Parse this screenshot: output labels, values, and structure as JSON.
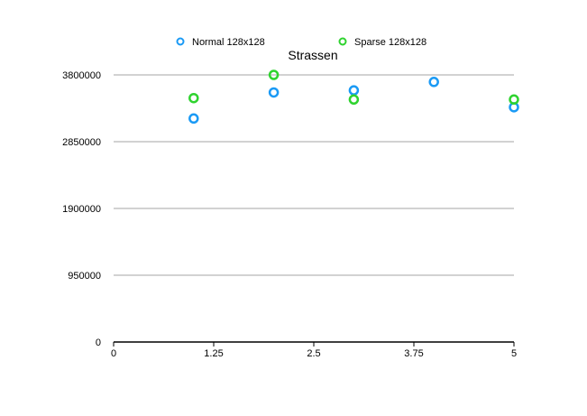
{
  "chart_data": {
    "type": "scatter",
    "title": "Strassen",
    "xlabel": "",
    "ylabel": "",
    "xlim": [
      0,
      5
    ],
    "ylim": [
      0,
      3800000
    ],
    "x_ticks": [
      0,
      1.25,
      2.5,
      3.75,
      5
    ],
    "x_tick_labels": [
      "0",
      "1.25",
      "2.5",
      "3.75",
      "5"
    ],
    "y_ticks": [
      0,
      950000,
      1900000,
      2850000,
      3800000
    ],
    "y_tick_labels": [
      "0",
      "950000",
      "1900000",
      "2850000",
      "3800000"
    ],
    "grid": "horizontal",
    "legend_position": "top-center",
    "series": [
      {
        "name": "Normal 128x128",
        "color": "#1a9af5",
        "points": [
          {
            "x": 1,
            "y": 3180000
          },
          {
            "x": 2,
            "y": 3550000
          },
          {
            "x": 3,
            "y": 3580000
          },
          {
            "x": 4,
            "y": 3700000
          },
          {
            "x": 5,
            "y": 3340000
          }
        ]
      },
      {
        "name": "Sparse 128x128",
        "color": "#2fd32f",
        "points": [
          {
            "x": 1,
            "y": 3470000
          },
          {
            "x": 2,
            "y": 3800000
          },
          {
            "x": 3,
            "y": 3450000
          },
          {
            "x": 5,
            "y": 3450000
          }
        ]
      }
    ]
  }
}
